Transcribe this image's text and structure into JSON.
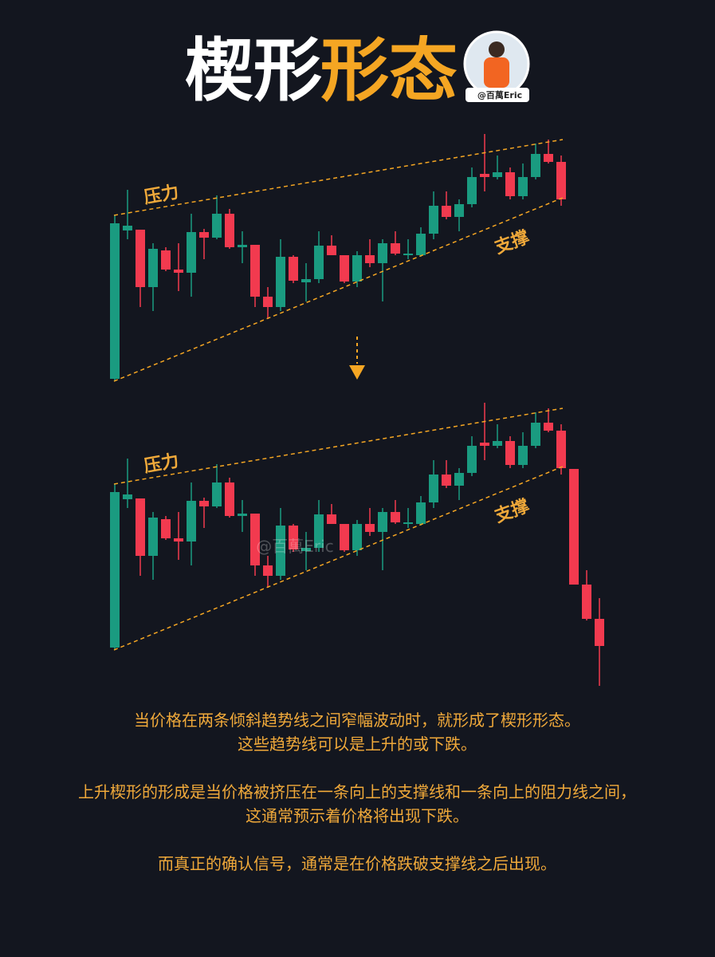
{
  "header": {
    "title_part1": "楔形",
    "title_part2": "形态",
    "badge": "@百萬Eric"
  },
  "diagrams": [
    {
      "resistance_label": "压力",
      "support_label": "支撑"
    },
    {
      "resistance_label": "压力",
      "support_label": "支撑"
    }
  ],
  "watermark": "@百萬Eric",
  "paragraphs": [
    [
      "当价格在两条倾斜趋势线之间窄幅波动时，就形成了楔形形态。",
      "这些趋势线可以是上升的或下跌。"
    ],
    [
      "上升楔形的形成是当价格被挤压在一条向上的支撑线和一条向上的阻力线之间，",
      "这通常预示着价格将出现下跌。"
    ],
    [
      "而真正的确认信号，通常是在价格跌破支撑线之后出现。"
    ]
  ]
}
